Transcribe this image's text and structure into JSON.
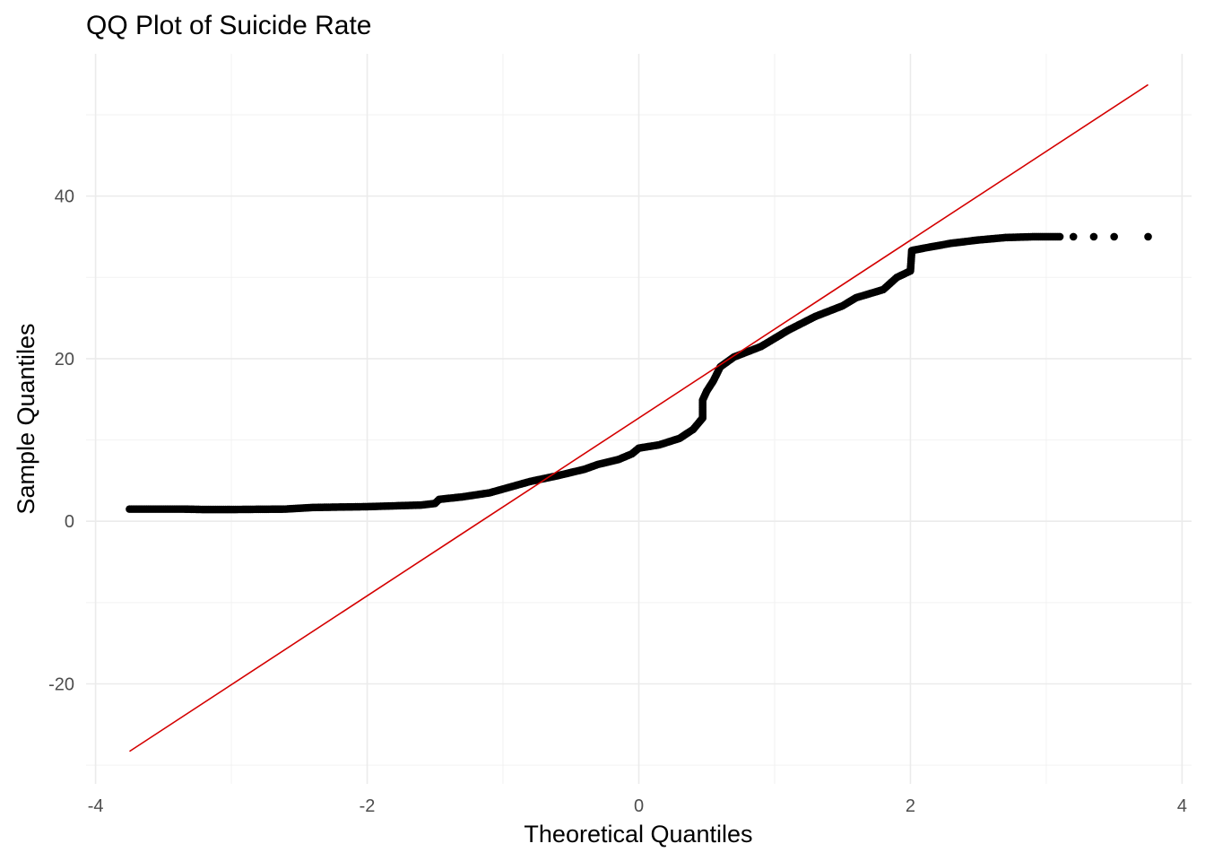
{
  "chart_data": {
    "type": "scatter",
    "title": "QQ Plot of Suicide Rate",
    "xlabel": "Theoretical Quantiles",
    "ylabel": "Sample Quantiles",
    "xlim": [
      -4.07,
      4.07
    ],
    "ylim": [
      -32.3,
      57.5
    ],
    "x_ticks": [
      -4,
      -2,
      0,
      2,
      4
    ],
    "x_tick_labels": [
      "-4",
      "-2",
      "0",
      "2",
      "4"
    ],
    "y_ticks": [
      -20,
      0,
      20,
      40
    ],
    "y_tick_labels": [
      "-20",
      "0",
      "20",
      "40"
    ],
    "x_minor_grid": [
      -3,
      -1,
      1,
      3
    ],
    "y_minor_grid": [
      -30,
      -10,
      10,
      30,
      50
    ],
    "grid": true,
    "point_color": "#000000",
    "line_color": "#d40000",
    "reference_line": {
      "x": [
        -3.75,
        3.75
      ],
      "y": [
        -28.3,
        53.7
      ]
    },
    "sample_curve": [
      [
        -3.75,
        1.5
      ],
      [
        -3.5,
        1.5
      ],
      [
        -3.35,
        1.5
      ],
      [
        -3.2,
        1.45
      ],
      [
        -3.0,
        1.45
      ],
      [
        -2.6,
        1.5
      ],
      [
        -2.4,
        1.7
      ],
      [
        -2.0,
        1.8
      ],
      [
        -1.6,
        2.0
      ],
      [
        -1.5,
        2.2
      ],
      [
        -1.47,
        2.7
      ],
      [
        -1.3,
        3.0
      ],
      [
        -1.1,
        3.5
      ],
      [
        -0.95,
        4.2
      ],
      [
        -0.8,
        4.9
      ],
      [
        -0.6,
        5.6
      ],
      [
        -0.4,
        6.4
      ],
      [
        -0.3,
        7.0
      ],
      [
        -0.15,
        7.6
      ],
      [
        -0.05,
        8.3
      ],
      [
        0.0,
        9.0
      ],
      [
        0.15,
        9.4
      ],
      [
        0.3,
        10.2
      ],
      [
        0.4,
        11.3
      ],
      [
        0.45,
        12.3
      ],
      [
        0.47,
        12.7
      ],
      [
        0.47,
        14.9
      ],
      [
        0.5,
        16.0
      ],
      [
        0.55,
        17.3
      ],
      [
        0.6,
        19.0
      ],
      [
        0.7,
        20.2
      ],
      [
        0.9,
        21.5
      ],
      [
        1.1,
        23.5
      ],
      [
        1.3,
        25.2
      ],
      [
        1.5,
        26.5
      ],
      [
        1.6,
        27.5
      ],
      [
        1.8,
        28.5
      ],
      [
        1.9,
        30.0
      ],
      [
        2.0,
        30.8
      ],
      [
        2.01,
        33.3
      ],
      [
        2.1,
        33.6
      ],
      [
        2.3,
        34.2
      ],
      [
        2.5,
        34.6
      ],
      [
        2.7,
        34.9
      ],
      [
        2.9,
        35.0
      ],
      [
        3.1,
        35.0
      ]
    ],
    "tail_points": [
      {
        "x": 3.2,
        "y": 35.0
      },
      {
        "x": 3.35,
        "y": 35.0
      },
      {
        "x": 3.5,
        "y": 35.0
      },
      {
        "x": 3.75,
        "y": 35.0
      }
    ]
  }
}
